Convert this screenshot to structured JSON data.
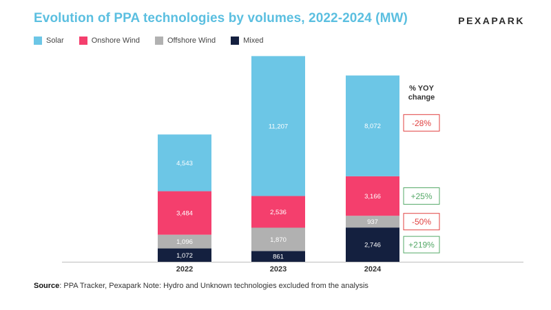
{
  "header": {
    "title": "Evolution of PPA technologies by volumes, 2022-2024 (MW)",
    "logo": "PEXAPARK"
  },
  "footer": {
    "source_label": "Source",
    "source_text": ": PPA Tracker, Pexapark Note: Hydro and Unknown technologies excluded from the analysis"
  },
  "chart_data": {
    "type": "bar",
    "stacked": true,
    "title": "Evolution of PPA technologies by volumes, 2022-2024 (MW)",
    "categories": [
      "2022",
      "2023",
      "2024"
    ],
    "series": [
      {
        "name": "Solar",
        "color": "#6cc6e6",
        "values": [
          4543,
          11207,
          8072
        ],
        "labels": [
          "4,543",
          "11,207",
          "8,072"
        ],
        "label_color": "#ffffff"
      },
      {
        "name": "Onshore Wind",
        "color": "#f43f6d",
        "values": [
          3484,
          2536,
          3166
        ],
        "labels": [
          "3,484",
          "2,536",
          "3,166"
        ],
        "label_color": "#ffffff"
      },
      {
        "name": "Offshore Wind",
        "color": "#b1b1b1",
        "values": [
          1096,
          1870,
          937
        ],
        "labels": [
          "1,096",
          "1,870",
          "937"
        ],
        "label_color": "#ffffff"
      },
      {
        "name": "Mixed",
        "color": "#14203f",
        "values": [
          1072,
          861,
          2746
        ],
        "labels": [
          "1,072",
          "861",
          "2,746"
        ],
        "label_color": "#ffffff"
      }
    ],
    "yoy": {
      "title_lines": [
        "% YOY",
        "change"
      ],
      "changes": [
        {
          "series": "Solar",
          "label": "-28%",
          "color": "#e0403f"
        },
        {
          "series": "Onshore Wind",
          "label": "+25%",
          "color": "#54a867"
        },
        {
          "series": "Offshore Wind",
          "label": "-50%",
          "color": "#e0403f"
        },
        {
          "series": "Mixed",
          "label": "+219%",
          "color": "#54a867"
        }
      ]
    },
    "ylim": [
      0,
      16000
    ],
    "xlabel": "",
    "ylabel": "",
    "legend_position": "top-left"
  }
}
